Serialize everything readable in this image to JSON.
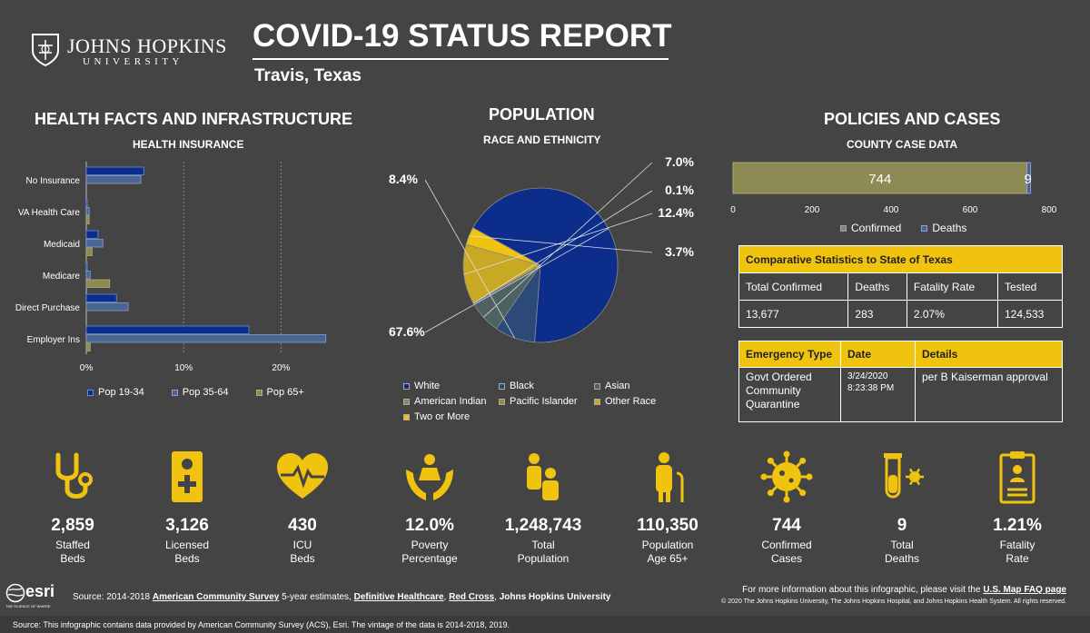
{
  "header": {
    "logo_name": "JOHNS HOPKINS",
    "logo_sub": "UNIVERSITY",
    "title": "COVID-19 STATUS REPORT",
    "location": "Travis,  Texas"
  },
  "health": {
    "section_title": "HEALTH FACTS AND INFRASTRUCTURE",
    "chart_title": "HEALTH INSURANCE"
  },
  "population": {
    "section_title": "POPULATION",
    "chart_title": "RACE AND ETHNICITY"
  },
  "policies": {
    "section_title": "POLICIES AND CASES",
    "chart_title": "COUNTY CASE DATA",
    "comparative": {
      "title": "Comparative Statistics to State of Texas",
      "headers": [
        "Total Confirmed",
        "Deaths",
        "Fatality Rate",
        "Tested"
      ],
      "values": [
        "13,677",
        "283",
        "2.07%",
        "124,533"
      ]
    },
    "emergency": {
      "headers": [
        "Emergency Type",
        "Date",
        "Details"
      ],
      "type": "Govt Ordered Community Quarantine",
      "date": "3/24/2020 8:23:38 PM",
      "details": "per B Kaiserman approval"
    }
  },
  "colors": {
    "background": "#444444",
    "accent_yellow": "#f0c30f",
    "pop_19_34": "#0c2d8a",
    "pop_35_64": "#4a6591",
    "pop_65": "#8d8a53"
  },
  "chart_data": [
    {
      "type": "bar",
      "orientation": "horizontal",
      "title": "HEALTH INSURANCE",
      "categories": [
        "No Insurance",
        "VA Health Care",
        "Medicaid",
        "Medicare",
        "Direct Purchase",
        "Employer Ins"
      ],
      "series": [
        {
          "name": "Pop 19-34",
          "values": [
            5.9,
            0.1,
            1.2,
            0.1,
            3.1,
            16.7
          ]
        },
        {
          "name": "Pop 35-64",
          "values": [
            5.6,
            0.3,
            1.7,
            0.4,
            4.3,
            24.6
          ]
        },
        {
          "name": "Pop 65+",
          "values": [
            0.0,
            0.3,
            0.6,
            2.4,
            0.0,
            0.4
          ]
        }
      ],
      "xlim": [
        0,
        25
      ],
      "x_ticks": [
        "0%",
        "10%",
        "20%"
      ],
      "x_tick_values": [
        0,
        10,
        20
      ],
      "legend": "bottom"
    },
    {
      "type": "pie",
      "title": "RACE AND ETHNICITY",
      "slices": [
        {
          "name": "White",
          "value": 67.6,
          "color": "#0c2d8a"
        },
        {
          "name": "Black",
          "value": 8.4,
          "color": "#2b4a78"
        },
        {
          "name": "Asian",
          "value": 7.0,
          "color": "#4e6163"
        },
        {
          "name": "American Indian",
          "value": 0.1,
          "color": "#8d8a53"
        },
        {
          "name": "Pacific Islander",
          "value": 0.0,
          "color": "#9c8a3b"
        },
        {
          "name": "Other Race",
          "value": 12.4,
          "color": "#c9a924"
        },
        {
          "name": "Two or More",
          "value": 3.7,
          "color": "#f0c30f"
        }
      ],
      "shown_labels": [
        "67.6%",
        "8.4%",
        "7.0%",
        "0.1%",
        "12.4%",
        "3.7%"
      ],
      "legend": "bottom"
    },
    {
      "type": "bar",
      "orientation": "horizontal",
      "stacked": true,
      "title": "COUNTY CASE DATA",
      "series": [
        {
          "name": "Confirmed",
          "values": [
            744
          ],
          "color": "#8d8a53"
        },
        {
          "name": "Deaths",
          "values": [
            9
          ],
          "color": "#4a6591"
        }
      ],
      "data_labels": [
        "744",
        "9"
      ],
      "xlim": [
        0,
        800
      ],
      "x_ticks": [
        "0",
        "200",
        "400",
        "600",
        "800"
      ],
      "x_tick_values": [
        0,
        200,
        400,
        600,
        800
      ],
      "legend": "bottom"
    }
  ],
  "stats": [
    {
      "value": "2,859",
      "label": "Staffed\nBeds",
      "icon": "stethoscope-icon"
    },
    {
      "value": "3,126",
      "label": "Licensed\nBeds",
      "icon": "medical-id-icon"
    },
    {
      "value": "430",
      "label": "ICU\nBeds",
      "icon": "heartbeat-icon"
    },
    {
      "value": "12.0%",
      "label": "Poverty\nPercentage",
      "icon": "hands-person-icon"
    },
    {
      "value": "1,248,743",
      "label": "Total\nPopulation",
      "icon": "family-icon"
    },
    {
      "value": "110,350",
      "label": "Population\nAge 65+",
      "icon": "elderly-icon"
    },
    {
      "value": "744",
      "label": "Confirmed\nCases",
      "icon": "virus-icon"
    },
    {
      "value": "9",
      "label": "Total\nDeaths",
      "icon": "test-tube-virus-icon"
    },
    {
      "value": "1.21%",
      "label": "Fatality\nRate",
      "icon": "clipboard-icon"
    }
  ],
  "footer": {
    "esri_name": "esri",
    "esri_tag": "THE SCIENCE OF WHERE",
    "source_prefix": "Source: 2014-2018 ",
    "link_acs": "American Community Survey",
    "source_mid1": " 5-year estimates, ",
    "link_dh": "Definitive Healthcare",
    "source_mid2": ", ",
    "link_rc": "Red Cross",
    "source_mid3": ", ",
    "source_jhu": "Johns Hopkins University",
    "more_info_prefix": "For more information about this infographic, please visit the ",
    "more_info_link": "U.S. Map FAQ page",
    "copyright": "© 2020 The Johns Hopkins University, The Johns Hopkins Hospital, and Johns Hopkins Health System. All rights reserved.",
    "bottom_source": "Source: This infographic contains data provided by American Community Survey (ACS), Esri. The vintage of the data is 2014-2018, 2019."
  }
}
